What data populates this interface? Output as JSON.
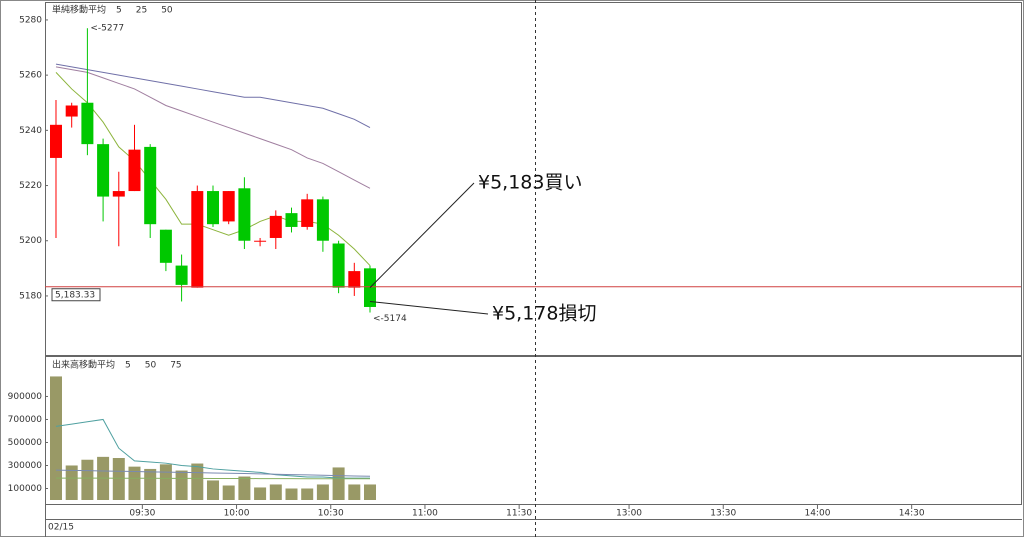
{
  "chart_data": [
    {
      "type": "candlestick",
      "title": "単純移動平均",
      "open": [
        5230,
        5245,
        5250,
        5235,
        5216,
        5218,
        5234,
        5204,
        5191,
        5183,
        5218,
        5207,
        5219,
        5200,
        5201,
        5210,
        5205,
        5215,
        5199,
        5183,
        5190
      ],
      "high": [
        5251,
        5250,
        5277,
        5237,
        5225,
        5242,
        5235,
        5204,
        5195,
        5220,
        5220,
        5218,
        5223,
        5201,
        5211,
        5212,
        5217,
        5216,
        5200,
        5192,
        5191
      ],
      "low": [
        5201,
        5241,
        5231,
        5207,
        5198,
        5218,
        5201,
        5189,
        5178,
        5183,
        5205,
        5206,
        5197,
        5198,
        5197,
        5203,
        5204,
        5196,
        5181,
        5180,
        5174
      ],
      "close": [
        5242,
        5249,
        5235,
        5216,
        5218,
        5233,
        5206,
        5192,
        5184,
        5218,
        5206,
        5218,
        5200,
        5200,
        5209,
        5205,
        5215,
        5200,
        5183,
        5189,
        5176
      ],
      "up_color": "#ff0000",
      "down_color": "#00c800",
      "series": [
        {
          "name": "5",
          "color": "#8cb43c",
          "values": [
            5261,
            5255,
            5250,
            5243,
            5234,
            5229,
            5222,
            5215,
            5206,
            5206,
            5204,
            5202,
            5204,
            5207,
            5209,
            5207,
            5207,
            5206,
            5202,
            5197,
            5191
          ]
        },
        {
          "name": "25",
          "color": "#a07fa0",
          "values": [
            5263,
            5262,
            5261,
            5259,
            5257,
            5255,
            5252,
            5249,
            5247,
            5245,
            5243,
            5241,
            5239,
            5237,
            5235,
            5233,
            5230,
            5228,
            5225,
            5222,
            5219
          ]
        },
        {
          "name": "50",
          "color": "#7070a8",
          "values": [
            5264,
            5263,
            5262,
            5261,
            5260,
            5259,
            5258,
            5257,
            5256,
            5255,
            5254,
            5253,
            5252,
            5252,
            5251,
            5250,
            5249,
            5248,
            5246,
            5244,
            5241
          ]
        }
      ],
      "xlim": [
        -0.7,
        61.4
      ],
      "ylim": [
        5158.6,
        5286.5
      ],
      "yticks": [
        5180,
        5200,
        5220,
        5240,
        5260,
        5280
      ],
      "annotations": [
        {
          "value": 5277,
          "label": "<-5277"
        },
        {
          "value": 5174,
          "label": "<-5174"
        }
      ],
      "last_price": {
        "value": 5183.33,
        "label": "5,183.33"
      },
      "orders": [
        {
          "value": 5183,
          "label": "¥5,183買い"
        },
        {
          "value": 5178,
          "label": "¥5,178損切"
        }
      ]
    },
    {
      "type": "bar",
      "title": "出来高移動平均",
      "values": [
        1074000,
        300000,
        350000,
        375000,
        365000,
        290000,
        270000,
        310000,
        256000,
        317000,
        170000,
        126000,
        204000,
        109000,
        135000,
        100000,
        100000,
        135000,
        283000,
        135000,
        135000
      ],
      "color": "#999966",
      "series": [
        {
          "name": "5",
          "color": "#4fa0a0",
          "values": [
            640000,
            660000,
            680000,
            700000,
            450000,
            340000,
            330000,
            320000,
            300000,
            290000,
            270000,
            260000,
            250000,
            240000,
            220000,
            210000,
            200000,
            200000,
            190000,
            190000,
            190000
          ]
        },
        {
          "name": "50",
          "color": "#7a8ab0",
          "values": [
            260000,
            258000,
            255000,
            252000,
            250000,
            248000,
            245000,
            242000,
            240000,
            238000,
            235000,
            232000,
            230000,
            227000,
            224000,
            221000,
            218000,
            215000,
            212000,
            209000,
            206000
          ]
        },
        {
          "name": "75",
          "color": "#88b060",
          "values": [
            190000,
            190000,
            190000,
            190000,
            189000,
            189000,
            189000,
            188000,
            188000,
            188000,
            187000,
            187000,
            187000,
            186000,
            186000,
            186000,
            185000,
            185000,
            185000,
            185000,
            185000
          ]
        }
      ],
      "xlim": [
        -0.7,
        61.4
      ],
      "ylim": [
        0,
        1243000
      ],
      "yticks": [
        100000,
        300000,
        500000,
        700000,
        900000
      ],
      "xticks": [
        {
          "value": 5.5,
          "label": "09:30"
        },
        {
          "value": 11.5,
          "label": "10:00"
        },
        {
          "value": 17.5,
          "label": "10:30"
        },
        {
          "value": 23.5,
          "label": "11:00"
        },
        {
          "value": 29.5,
          "label": "11:30"
        },
        {
          "value": 36.5,
          "label": "13:00"
        },
        {
          "value": 42.5,
          "label": "13:30"
        },
        {
          "value": 48.5,
          "label": "14:00"
        },
        {
          "value": 54.5,
          "label": "14:30"
        }
      ],
      "date": "02/15"
    }
  ]
}
